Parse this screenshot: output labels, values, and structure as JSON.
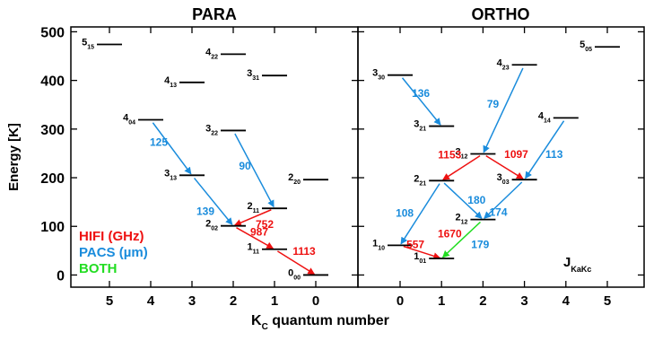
{
  "chart_data": {
    "type": "diagram",
    "panels": [
      {
        "title": "PARA"
      },
      {
        "title": "ORTHO"
      }
    ],
    "ylabel": "Energy [K]",
    "xlabel_main": "K",
    "xlabel_sub": "C",
    "xlabel_rest": " quantum number",
    "ylim": [
      -25,
      510
    ],
    "yticks": [
      "0",
      "100",
      "200",
      "300",
      "400",
      "500"
    ],
    "para_ticks": [
      "5",
      "4",
      "3",
      "2",
      "1",
      "0"
    ],
    "ortho_ticks": [
      "0",
      "1",
      "2",
      "3",
      "4",
      "5"
    ],
    "legend": [
      {
        "text": "HIFI (GHz)",
        "color": "#ee1111"
      },
      {
        "text": "PACS (µm)",
        "color": "#1a8cdc"
      },
      {
        "text": "BOTH",
        "color": "#22dd22"
      }
    ],
    "jlabel": {
      "main": "J",
      "sub": "KaKc"
    },
    "colors": {
      "hifi": "#ee1111",
      "pacs": "#1a8cdc",
      "both": "#22dd22"
    },
    "levels": [
      {
        "panel": 0,
        "kc": 5,
        "energy": 474,
        "main": "5",
        "sub": "15"
      },
      {
        "panel": 0,
        "kc": 4,
        "energy": 319,
        "main": "4",
        "sub": "04"
      },
      {
        "panel": 0,
        "kc": 3,
        "energy": 396,
        "main": "4",
        "sub": "13"
      },
      {
        "panel": 0,
        "kc": 3,
        "energy": 205,
        "main": "3",
        "sub": "13"
      },
      {
        "panel": 0,
        "kc": 2,
        "energy": 454,
        "main": "4",
        "sub": "22"
      },
      {
        "panel": 0,
        "kc": 2,
        "energy": 297,
        "main": "3",
        "sub": "22"
      },
      {
        "panel": 0,
        "kc": 2,
        "energy": 101,
        "main": "2",
        "sub": "02"
      },
      {
        "panel": 0,
        "kc": 1,
        "energy": 410,
        "main": "3",
        "sub": "31"
      },
      {
        "panel": 0,
        "kc": 1,
        "energy": 137,
        "main": "2",
        "sub": "11"
      },
      {
        "panel": 0,
        "kc": 1,
        "energy": 53,
        "main": "1",
        "sub": "11"
      },
      {
        "panel": 0,
        "kc": 0,
        "energy": 196,
        "main": "2",
        "sub": "20"
      },
      {
        "panel": 0,
        "kc": 0,
        "energy": 0,
        "main": "0",
        "sub": "00"
      },
      {
        "panel": 1,
        "kc": 0,
        "energy": 411,
        "main": "3",
        "sub": "30"
      },
      {
        "panel": 1,
        "kc": 0,
        "energy": 61,
        "main": "1",
        "sub": "10"
      },
      {
        "panel": 1,
        "kc": 1,
        "energy": 306,
        "main": "3",
        "sub": "21"
      },
      {
        "panel": 1,
        "kc": 1,
        "energy": 194,
        "main": "2",
        "sub": "21"
      },
      {
        "panel": 1,
        "kc": 1,
        "energy": 34,
        "main": "1",
        "sub": "01"
      },
      {
        "panel": 1,
        "kc": 2,
        "energy": 249,
        "main": "3",
        "sub": "12"
      },
      {
        "panel": 1,
        "kc": 2,
        "energy": 114,
        "main": "2",
        "sub": "12"
      },
      {
        "panel": 1,
        "kc": 3,
        "energy": 432,
        "main": "4",
        "sub": "23"
      },
      {
        "panel": 1,
        "kc": 3,
        "energy": 196,
        "main": "3",
        "sub": "03"
      },
      {
        "panel": 1,
        "kc": 4,
        "energy": 323,
        "main": "4",
        "sub": "14"
      },
      {
        "panel": 1,
        "kc": 5,
        "energy": 469,
        "main": "5",
        "sub": "05"
      }
    ],
    "transitions": [
      {
        "panel": 0,
        "from": [
          4,
          319
        ],
        "to": [
          3,
          205
        ],
        "kind": "pacs",
        "label": "125"
      },
      {
        "panel": 0,
        "from": [
          3,
          205
        ],
        "to": [
          2,
          101
        ],
        "kind": "pacs",
        "label": "139"
      },
      {
        "panel": 0,
        "from": [
          2,
          297
        ],
        "to": [
          1,
          137
        ],
        "kind": "pacs",
        "label": "90"
      },
      {
        "panel": 0,
        "from": [
          1,
          137
        ],
        "to": [
          2,
          101
        ],
        "kind": "hifi",
        "label": "752"
      },
      {
        "panel": 0,
        "from": [
          2,
          101
        ],
        "to": [
          1,
          53
        ],
        "kind": "hifi",
        "label": "987"
      },
      {
        "panel": 0,
        "from": [
          1,
          53
        ],
        "to": [
          0,
          0
        ],
        "kind": "hifi",
        "label": "1113"
      },
      {
        "panel": 1,
        "from": [
          0,
          411
        ],
        "to": [
          1,
          306
        ],
        "kind": "pacs",
        "label": "136"
      },
      {
        "panel": 1,
        "from": [
          3,
          432
        ],
        "to": [
          2,
          249
        ],
        "kind": "pacs",
        "label": "79"
      },
      {
        "panel": 1,
        "from": [
          4,
          323
        ],
        "to": [
          3,
          196
        ],
        "kind": "pacs",
        "label": "113"
      },
      {
        "panel": 1,
        "from": [
          2,
          249
        ],
        "to": [
          1,
          194
        ],
        "kind": "hifi",
        "label": "1153"
      },
      {
        "panel": 1,
        "from": [
          2,
          249
        ],
        "to": [
          3,
          196
        ],
        "kind": "hifi",
        "label": "1097"
      },
      {
        "panel": 1,
        "from": [
          1,
          194
        ],
        "to": [
          2,
          114
        ],
        "kind": "pacs",
        "label": "180"
      },
      {
        "panel": 1,
        "from": [
          3,
          196
        ],
        "to": [
          2,
          114
        ],
        "kind": "pacs",
        "label": "174"
      },
      {
        "panel": 1,
        "from": [
          1,
          194
        ],
        "to": [
          0,
          61
        ],
        "kind": "pacs",
        "label": "108"
      },
      {
        "panel": 1,
        "from": [
          0,
          61
        ],
        "to": [
          1,
          34
        ],
        "kind": "hifi",
        "label": "557"
      },
      {
        "panel": 1,
        "from": [
          2,
          114
        ],
        "to": [
          1,
          34
        ],
        "kind": "both",
        "label": "1670"
      },
      {
        "panel": 1,
        "from": [
          2,
          114
        ],
        "to": [
          1,
          34
        ],
        "kind": "both-label",
        "label": "179"
      }
    ]
  }
}
